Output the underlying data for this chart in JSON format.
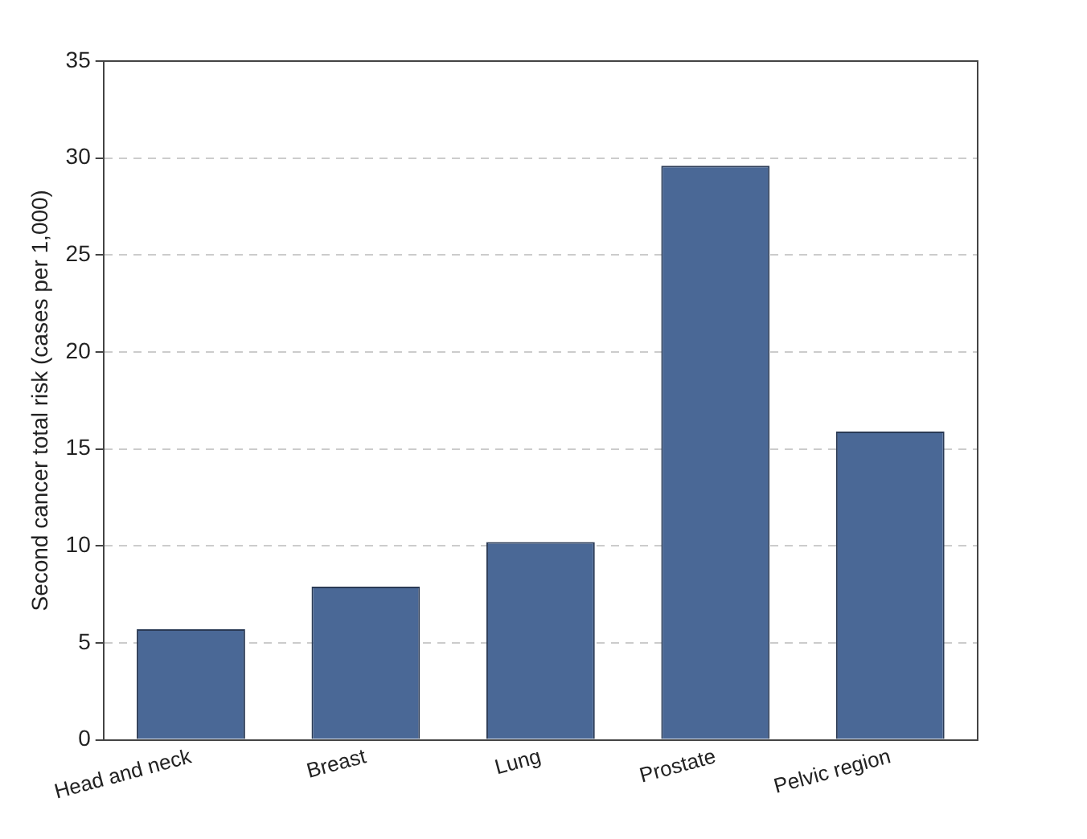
{
  "chart_data": {
    "type": "bar",
    "ylabel": "Second cancer total risk (cases per 1,000)",
    "categories": [
      "Head and neck",
      "Breast",
      "Lung",
      "Prostate",
      "Pelvic region"
    ],
    "values": [
      5.7,
      7.9,
      10.2,
      29.6,
      15.9
    ],
    "color": "#4a6896",
    "ylim": [
      0,
      35
    ],
    "yticks": [
      0,
      5,
      10,
      15,
      20,
      25,
      30,
      35
    ],
    "grid": "y",
    "legend": false
  }
}
